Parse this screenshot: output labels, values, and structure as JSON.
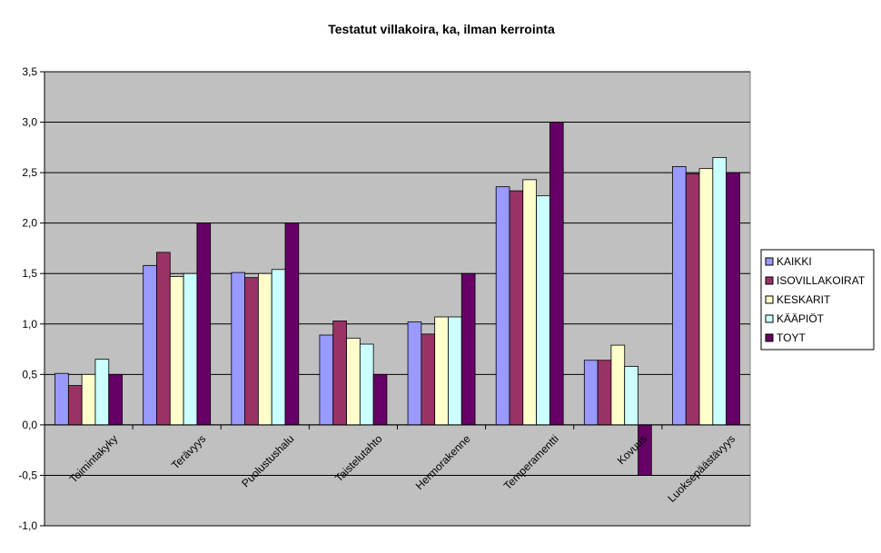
{
  "chart_data": {
    "type": "bar",
    "title": "Testatut villakoira, ka, ilman kerrointa",
    "categories": [
      "Toimintakyky",
      "Terävyys",
      "Puolustushalu",
      "Taistelutahto",
      "Hermorakenne",
      "Temperamentti",
      "Kovuus",
      "Luoksepäästävyys"
    ],
    "series": [
      {
        "name": "KAIKKI",
        "color": "#9999ff",
        "values": [
          0.51,
          1.58,
          1.51,
          0.89,
          1.02,
          2.36,
          0.64,
          2.56
        ]
      },
      {
        "name": "ISOVILLAKOIRAT",
        "color": "#993366",
        "values": [
          0.39,
          1.71,
          1.46,
          1.03,
          0.9,
          2.32,
          0.64,
          2.49
        ]
      },
      {
        "name": "KESKARIT",
        "color": "#ffffcc",
        "values": [
          0.5,
          1.47,
          1.5,
          0.86,
          1.07,
          2.43,
          0.79,
          2.54
        ]
      },
      {
        "name": "KÄÄPIÖT",
        "color": "#ccffff",
        "values": [
          0.65,
          1.5,
          1.54,
          0.8,
          1.07,
          2.27,
          0.58,
          2.65
        ]
      },
      {
        "name": "TOYT",
        "color": "#660066",
        "values": [
          0.5,
          2.0,
          2.0,
          0.5,
          1.5,
          3.0,
          -0.5,
          2.5
        ]
      }
    ],
    "yticks": [
      "-1,0",
      "-0,5",
      "0,0",
      "0,5",
      "1,0",
      "1,5",
      "2,0",
      "2,5",
      "3,0",
      "3,5"
    ],
    "ylim": [
      -1.0,
      3.5
    ],
    "plot_background": "#c0c0c0",
    "grid": true,
    "legend_position": "right"
  }
}
